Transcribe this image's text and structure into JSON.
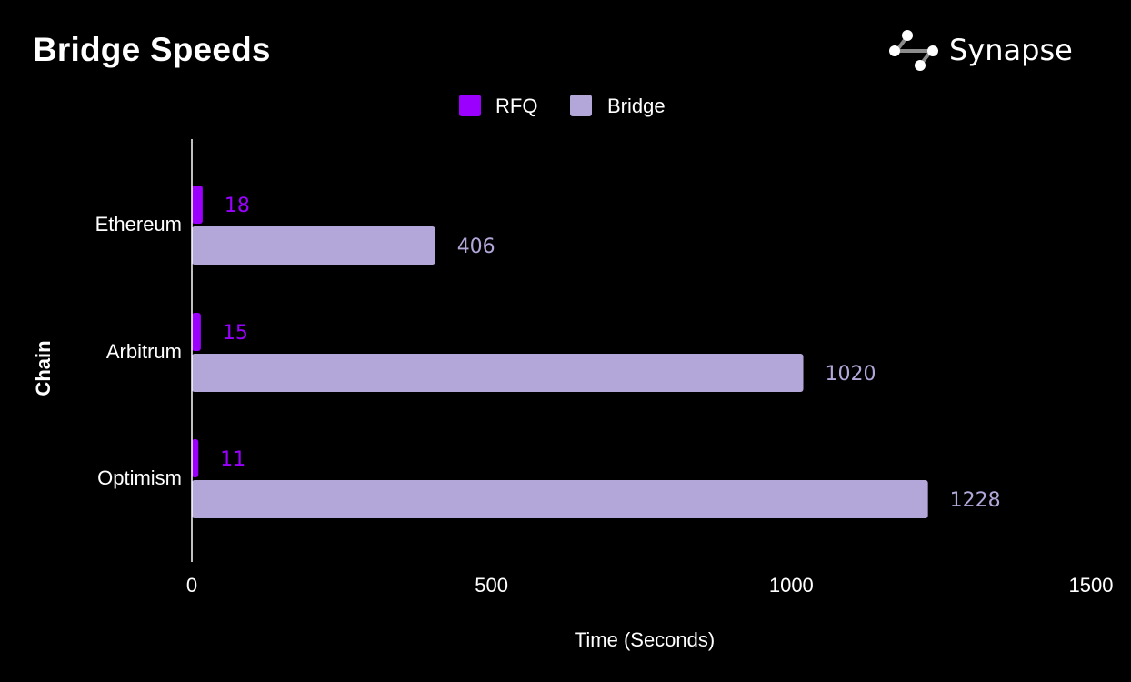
{
  "brand": {
    "name": "Synapse",
    "logo_icon": "synapse-logo-icon"
  },
  "colors": {
    "background": "#000000",
    "text": "#ffffff",
    "rfq": "#9b00ff",
    "bridge": "#b3a7d9",
    "logo_node": "#ffffff",
    "logo_line": "#8c8c8c"
  },
  "chart_data": {
    "type": "bar",
    "orientation": "horizontal",
    "title": "Bridge Speeds",
    "xlabel": "Time (Seconds)",
    "ylabel": "Chain",
    "categories": [
      "Ethereum",
      "Arbitrum",
      "Optimism"
    ],
    "series": [
      {
        "name": "RFQ",
        "values": [
          18,
          15,
          11
        ]
      },
      {
        "name": "Bridge",
        "values": [
          406,
          1020,
          1228
        ]
      }
    ],
    "data_labels": true,
    "xlim": [
      0,
      1500
    ],
    "xticks": [
      0,
      500,
      1000,
      1500
    ],
    "grid": false,
    "legend_position": "top-center"
  }
}
